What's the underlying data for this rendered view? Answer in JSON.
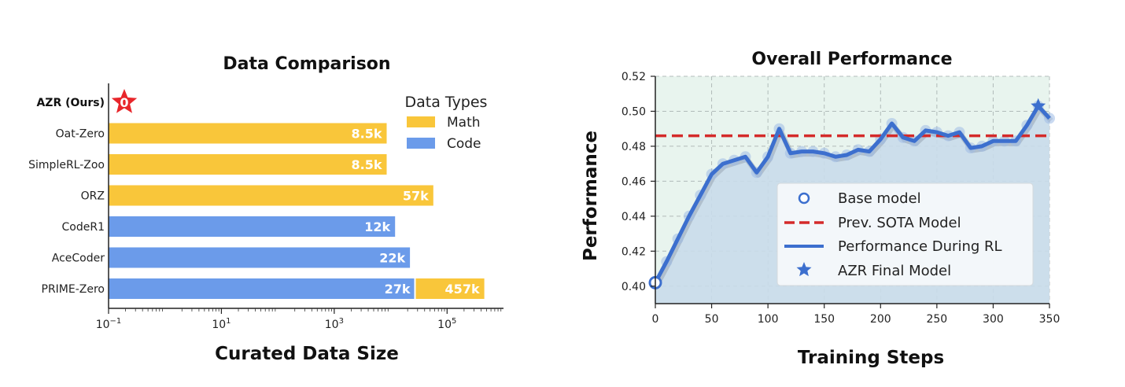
{
  "chart_data": [
    {
      "type": "bar",
      "orientation": "horizontal",
      "title": "Data Comparison",
      "xlabel": "Curated Data Size",
      "xscale": "log",
      "xlim": [
        0.1,
        1000000
      ],
      "xticks": [
        {
          "value": 0.1,
          "base": "10",
          "exp": "−1"
        },
        {
          "value": 10,
          "base": "10",
          "exp": "1"
        },
        {
          "value": 1000,
          "base": "10",
          "exp": "3"
        },
        {
          "value": 100000,
          "base": "10",
          "exp": "5"
        }
      ],
      "legend": {
        "title": "Data Types",
        "position": "top-right",
        "entries": [
          {
            "name": "Math",
            "color": "#f9c63a"
          },
          {
            "name": "Code",
            "color": "#6b9bea"
          }
        ]
      },
      "categories": [
        "AZR (Ours)",
        "Oat-Zero",
        "SimpleRL-Zoo",
        "ORZ",
        "CodeR1",
        "AceCoder",
        "PRIME-Zero"
      ],
      "bars": [
        {
          "category": "AZR (Ours)",
          "segments": [],
          "marker": {
            "label": "0",
            "color": "#e8262b"
          }
        },
        {
          "category": "Oat-Zero",
          "segments": [
            {
              "type": "Math",
              "value": 8500,
              "label": "8.5k"
            }
          ]
        },
        {
          "category": "SimpleRL-Zoo",
          "segments": [
            {
              "type": "Math",
              "value": 8500,
              "label": "8.5k"
            }
          ]
        },
        {
          "category": "ORZ",
          "segments": [
            {
              "type": "Math",
              "value": 57000,
              "label": "57k"
            }
          ]
        },
        {
          "category": "CodeR1",
          "segments": [
            {
              "type": "Code",
              "value": 12000,
              "label": "12k"
            }
          ]
        },
        {
          "category": "AceCoder",
          "segments": [
            {
              "type": "Code",
              "value": 22000,
              "label": "22k"
            }
          ]
        },
        {
          "category": "PRIME-Zero",
          "segments": [
            {
              "type": "Code",
              "value": 27000,
              "label": "27k"
            },
            {
              "type": "Math",
              "value": 457000,
              "label": "457k"
            }
          ]
        }
      ]
    },
    {
      "type": "line",
      "title": "Overall Performance",
      "xlabel": "Training Steps",
      "ylabel": "Performance",
      "xlim": [
        0,
        350
      ],
      "ylim": [
        0.39,
        0.52
      ],
      "xticks": [
        0,
        50,
        100,
        150,
        200,
        250,
        300,
        350
      ],
      "yticks": [
        0.4,
        0.42,
        0.44,
        0.46,
        0.48,
        0.5,
        0.52
      ],
      "tick_labels_y": [
        "0.40",
        "0.42",
        "0.44",
        "0.46",
        "0.48",
        "0.50",
        "0.52"
      ],
      "tick_labels_x": [
        "0",
        "50",
        "100",
        "150",
        "200",
        "250",
        "300",
        "350"
      ],
      "series": [
        {
          "name": "Performance During RL",
          "color": "#3c6fce",
          "x": [
            0,
            10,
            20,
            30,
            40,
            50,
            60,
            70,
            80,
            90,
            100,
            110,
            120,
            130,
            140,
            150,
            160,
            170,
            180,
            190,
            200,
            210,
            220,
            230,
            240,
            250,
            260,
            270,
            280,
            290,
            300,
            310,
            320,
            330,
            340,
            350
          ],
          "y": [
            0.402,
            0.414,
            0.427,
            0.44,
            0.452,
            0.464,
            0.47,
            0.472,
            0.474,
            0.465,
            0.474,
            0.49,
            0.476,
            0.477,
            0.477,
            0.476,
            0.474,
            0.475,
            0.478,
            0.477,
            0.484,
            0.493,
            0.485,
            0.483,
            0.489,
            0.488,
            0.486,
            0.488,
            0.479,
            0.48,
            0.483,
            0.483,
            0.483,
            0.492,
            0.503,
            0.496
          ]
        }
      ],
      "reference_line": {
        "name": "Prev. SOTA Model",
        "y": 0.486,
        "color": "#d42a2a",
        "style": "dashed"
      },
      "base_model": {
        "name": "Base model",
        "x": 0,
        "y": 0.402
      },
      "final_model": {
        "name": "AZR Final Model",
        "x": 340,
        "y": 0.503
      },
      "legend": {
        "position": "lower-right",
        "entries": [
          "Base model",
          "Prev. SOTA Model",
          "Performance During RL",
          "AZR Final Model"
        ]
      }
    }
  ]
}
